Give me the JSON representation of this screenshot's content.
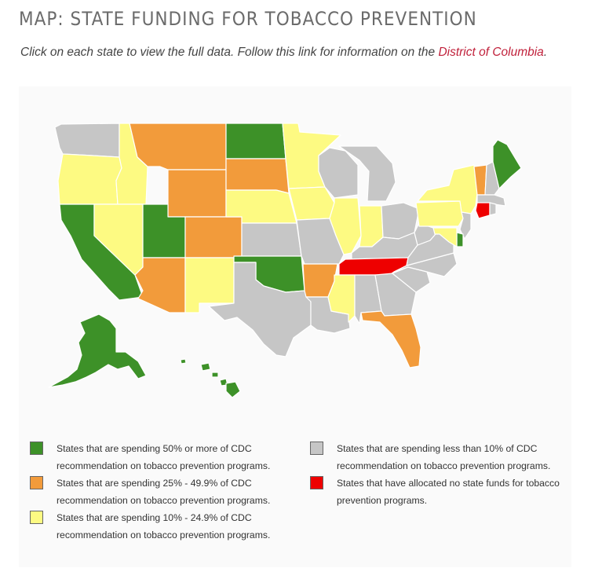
{
  "header": {
    "title": "MAP: STATE FUNDING FOR TOBACCO PREVENTION",
    "subtitle_text": "Click on each state to view the full data. Follow this link for information on the ",
    "subtitle_link": "District of Columbia",
    "subtitle_end": "."
  },
  "colors": {
    "green": "#3d9128",
    "orange": "#f29b3b",
    "yellow": "#fdfa82",
    "gray": "#c6c6c6",
    "red": "#ee0000"
  },
  "legend": {
    "green_label": "States that are spending 50% or more of CDC recommendation on tobacco prevention programs.",
    "orange_label": "States that are spending 25% - 49.9% of CDC recommendation on tobacco prevention programs.",
    "yellow_label": "States that are spending 10% - 24.9% of CDC recommendation on tobacco prevention programs.",
    "gray_label": "States that are spending less than 10% of CDC recommendation on tobacco prevention programs.",
    "red_label": "States that have allocated no state funds for tobacco prevention programs."
  },
  "states": {
    "WA": "gray",
    "OR": "yellow",
    "CA": "green",
    "ID": "yellow",
    "NV": "yellow",
    "MT": "orange",
    "WY": "orange",
    "UT": "green",
    "AZ": "orange",
    "CO": "orange",
    "NM": "yellow",
    "ND": "green",
    "SD": "orange",
    "NE": "yellow",
    "KS": "gray",
    "OK": "green",
    "TX": "gray",
    "MN": "yellow",
    "IA": "yellow",
    "MO": "gray",
    "AR": "orange",
    "LA": "gray",
    "WI": "gray",
    "IL": "yellow",
    "MI": "gray",
    "IN": "yellow",
    "OH": "gray",
    "KY": "gray",
    "TN": "red",
    "MS": "yellow",
    "AL": "gray",
    "GA": "gray",
    "FL": "orange",
    "SC": "gray",
    "NC": "gray",
    "VA": "gray",
    "WV": "gray",
    "PA": "yellow",
    "NY": "yellow",
    "VT": "orange",
    "NH": "gray",
    "ME": "green",
    "MA": "gray",
    "CT": "red",
    "RI": "gray",
    "NJ": "gray",
    "DE": "green",
    "MD": "yellow",
    "AK": "green",
    "HI": "green"
  }
}
